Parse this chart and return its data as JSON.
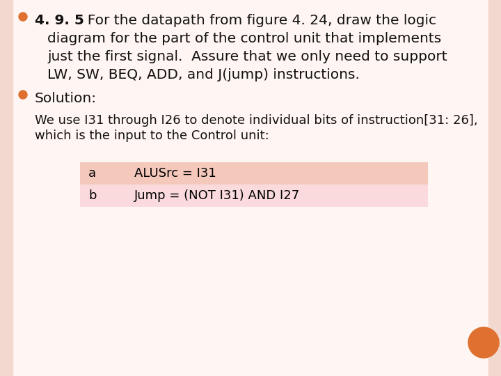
{
  "background_color": "#FFF5F2",
  "border_left_color": "#E8A090",
  "border_right_color": "#E8A090",
  "page_bg_color": "#F2D8CE",
  "bullet_color": "#E07030",
  "bullet1_bold": "4. 9. 5",
  "bullet1_rest_lines": [
    "  For the datapath from figure 4. 24, draw the logic",
    "diagram for the part of the control unit that implements",
    "just the first signal.  Assure that we only need to support",
    "LW, SW, BEQ, ADD, and J(jump) instructions."
  ],
  "bullet2_text": "Solution:",
  "body_lines": [
    "We use I31 through I26 to denote individual bits of instruction[31: 26],",
    "which is the input to the Control unit:"
  ],
  "table_rows": [
    {
      "col1": "a",
      "col2": "ALUSrc = I31"
    },
    {
      "col1": "b",
      "col2": "Jump = (NOT I31) AND I27"
    }
  ],
  "table_row_color_a": "#F5C8BC",
  "table_row_color_b": "#FADADD",
  "table_text_color": "#000000",
  "orange_circle_color": "#E07030",
  "text_color": "#111111",
  "font_size_main": 14.5,
  "font_size_body": 13,
  "font_size_table": 13,
  "font_name": "DejaVu Sans"
}
